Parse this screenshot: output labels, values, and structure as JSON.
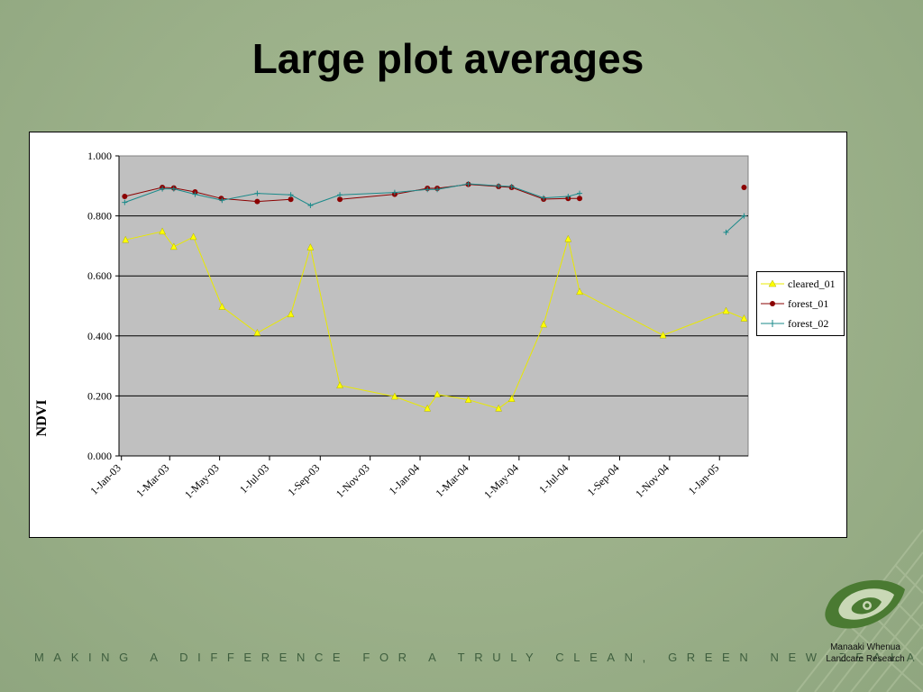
{
  "slide": {
    "title": "Large plot averages",
    "tagline": "MAKING A DIFFERENCE FOR A TRULY CLEAN, GREEN NEW ZEALAND",
    "brand_name": "Manaaki Whenua",
    "brand_sub": "Landcare Research",
    "logo_icon": "koru-leaf-icon"
  },
  "colors": {
    "plot_bg": "#c0c0c0",
    "cleared_01": "#ffff00",
    "forest_01": "#8b0000",
    "forest_02": "#1a8a8a",
    "tagline": "#3e5e3e"
  },
  "chart_data": {
    "type": "line",
    "title": "",
    "xlabel": "",
    "ylabel": "NDVI",
    "ylim": [
      0,
      1
    ],
    "xlim": [
      "2002-12-29",
      "2005-02-05"
    ],
    "yticks": [
      "0.000",
      "0.200",
      "0.400",
      "0.600",
      "0.800",
      "1.000"
    ],
    "xticks": [
      "2003-01-01",
      "2003-03-01",
      "2003-05-01",
      "2003-07-01",
      "2003-09-01",
      "2003-11-01",
      "2004-01-01",
      "2004-03-01",
      "2004-05-01",
      "2004-07-01",
      "2004-09-01",
      "2004-11-01",
      "2005-01-01"
    ],
    "xtick_labels": [
      "1-Jan-03",
      "1-Mar-03",
      "1-May-03",
      "1-Jul-03",
      "1-Sep-03",
      "1-Nov-03",
      "1-Jan-04",
      "1-Mar-04",
      "1-May-04",
      "1-Jul-04",
      "1-Sep-04",
      "1-Nov-04",
      "1-Jan-05"
    ],
    "grid": "horizontal",
    "legend": "right",
    "series": [
      {
        "name": "cleared_01",
        "marker": "triangle",
        "points": [
          {
            "date": "2003-01-06",
            "ndvi": 0.72
          },
          {
            "date": "2003-02-20",
            "ndvi": 0.748
          },
          {
            "date": "2003-03-06",
            "ndvi": 0.697
          },
          {
            "date": "2003-03-30",
            "ndvi": 0.73
          },
          {
            "date": "2003-05-04",
            "ndvi": 0.497
          },
          {
            "date": "2003-06-16",
            "ndvi": 0.41
          },
          {
            "date": "2003-07-27",
            "ndvi": 0.472
          },
          {
            "date": "2003-08-20",
            "ndvi": 0.695
          },
          {
            "date": "2003-09-25",
            "ndvi": 0.235
          },
          {
            "date": "2003-12-01",
            "ndvi": 0.198
          },
          {
            "date": "2004-01-10",
            "ndvi": 0.158
          },
          {
            "date": "2004-01-22",
            "ndvi": 0.205
          },
          {
            "date": "2004-02-29",
            "ndvi": 0.187
          },
          {
            "date": "2004-04-06",
            "ndvi": 0.158
          },
          {
            "date": "2004-04-22",
            "ndvi": 0.19
          },
          {
            "date": "2004-05-31",
            "ndvi": 0.438
          },
          {
            "date": "2004-06-30",
            "ndvi": 0.723
          },
          {
            "date": "2004-07-14",
            "ndvi": 0.547
          },
          {
            "date": "2004-10-24",
            "ndvi": 0.402
          },
          {
            "date": "2005-01-09",
            "ndvi": 0.483
          },
          {
            "date": "2005-01-31",
            "ndvi": 0.458
          }
        ]
      },
      {
        "name": "forest_01",
        "marker": "circle",
        "segments": [
          [
            {
              "date": "2003-01-05",
              "ndvi": 0.865
            },
            {
              "date": "2003-02-20",
              "ndvi": 0.895
            },
            {
              "date": "2003-03-06",
              "ndvi": 0.893
            },
            {
              "date": "2003-04-01",
              "ndvi": 0.88
            },
            {
              "date": "2003-05-03",
              "ndvi": 0.858
            },
            {
              "date": "2003-06-16",
              "ndvi": 0.848
            },
            {
              "date": "2003-07-27",
              "ndvi": 0.855
            }
          ],
          [
            {
              "date": "2003-09-25",
              "ndvi": 0.855
            },
            {
              "date": "2003-12-01",
              "ndvi": 0.872
            },
            {
              "date": "2004-01-10",
              "ndvi": 0.892
            },
            {
              "date": "2004-01-22",
              "ndvi": 0.892
            },
            {
              "date": "2004-02-29",
              "ndvi": 0.905
            },
            {
              "date": "2004-04-06",
              "ndvi": 0.898
            },
            {
              "date": "2004-04-22",
              "ndvi": 0.895
            },
            {
              "date": "2004-05-31",
              "ndvi": 0.856
            },
            {
              "date": "2004-06-30",
              "ndvi": 0.858
            },
            {
              "date": "2004-07-14",
              "ndvi": 0.858
            }
          ],
          [
            {
              "date": "2005-01-31",
              "ndvi": 0.895
            }
          ]
        ]
      },
      {
        "name": "forest_02",
        "marker": "plus",
        "segments": [
          [
            {
              "date": "2003-01-05",
              "ndvi": 0.845
            },
            {
              "date": "2003-02-20",
              "ndvi": 0.89
            },
            {
              "date": "2003-03-06",
              "ndvi": 0.89
            },
            {
              "date": "2003-04-01",
              "ndvi": 0.872
            },
            {
              "date": "2003-05-04",
              "ndvi": 0.852
            },
            {
              "date": "2003-06-16",
              "ndvi": 0.875
            },
            {
              "date": "2003-07-27",
              "ndvi": 0.87
            },
            {
              "date": "2003-08-20",
              "ndvi": 0.835
            },
            {
              "date": "2003-09-25",
              "ndvi": 0.87
            },
            {
              "date": "2003-12-01",
              "ndvi": 0.878
            },
            {
              "date": "2004-01-10",
              "ndvi": 0.888
            },
            {
              "date": "2004-01-22",
              "ndvi": 0.888
            },
            {
              "date": "2004-02-29",
              "ndvi": 0.907
            },
            {
              "date": "2004-04-06",
              "ndvi": 0.9
            },
            {
              "date": "2004-04-22",
              "ndvi": 0.898
            },
            {
              "date": "2004-05-31",
              "ndvi": 0.86
            },
            {
              "date": "2004-06-30",
              "ndvi": 0.865
            },
            {
              "date": "2004-07-14",
              "ndvi": 0.875
            }
          ],
          [
            {
              "date": "2005-01-09",
              "ndvi": 0.745
            },
            {
              "date": "2005-01-31",
              "ndvi": 0.8
            }
          ]
        ]
      }
    ]
  }
}
